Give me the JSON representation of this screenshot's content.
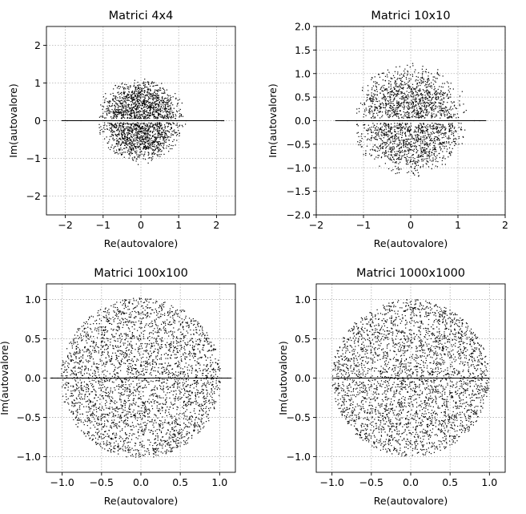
{
  "chart_data": [
    {
      "type": "scatter",
      "title": "Matrici 4x4",
      "xlabel": "Re(autovalore)",
      "ylabel": "Im(autovalore)",
      "xlim": [
        -2.5,
        2.5
      ],
      "ylim": [
        -2.5,
        2.5
      ],
      "xticks": [
        -2,
        -1,
        0,
        1,
        2
      ],
      "yticks": [
        -2,
        -1,
        0,
        1,
        2
      ],
      "xtick_labels": [
        "−2",
        "−1",
        "0",
        "1",
        "2"
      ],
      "ytick_labels": [
        "−2",
        "−1",
        "0",
        "1",
        "2"
      ],
      "grid": true,
      "point_color": "#000000",
      "distribution": {
        "shape": "disk with real-axis concentration",
        "approx_radius": 1.0,
        "real_axis_extent": [
          -2.1,
          2.2
        ]
      }
    },
    {
      "type": "scatter",
      "title": "Matrici 10x10",
      "xlabel": "Re(autovalore)",
      "ylabel": "Im(autovalore)",
      "xlim": [
        -2,
        2
      ],
      "ylim": [
        -2,
        2
      ],
      "xticks": [
        -2,
        -1,
        0,
        1,
        2
      ],
      "yticks": [
        -2.0,
        -1.5,
        -1.0,
        -0.5,
        0.0,
        0.5,
        1.0,
        1.5,
        2.0
      ],
      "xtick_labels": [
        "−2",
        "−1",
        "0",
        "1",
        "2"
      ],
      "ytick_labels": [
        "−2.0",
        "−1.5",
        "−1.0",
        "−0.5",
        "0.0",
        "0.5",
        "1.0",
        "1.5",
        "2.0"
      ],
      "grid": true,
      "point_color": "#000000",
      "distribution": {
        "shape": "disk with real-axis concentration",
        "approx_radius": 1.05,
        "real_axis_extent": [
          -1.6,
          1.6
        ]
      }
    },
    {
      "type": "scatter",
      "title": "Matrici 100x100",
      "xlabel": "Re(autovalore)",
      "ylabel": "Im(autovalore)",
      "xlim": [
        -1.2,
        1.2
      ],
      "ylim": [
        -1.2,
        1.2
      ],
      "xticks": [
        -1.0,
        -0.5,
        0.0,
        0.5,
        1.0
      ],
      "yticks": [
        -1.0,
        -0.5,
        0.0,
        0.5,
        1.0
      ],
      "xtick_labels": [
        "−1.0",
        "−0.5",
        "0.0",
        "0.5",
        "1.0"
      ],
      "ytick_labels": [
        "−1.0",
        "−0.5",
        "0.0",
        "0.5",
        "1.0"
      ],
      "grid": true,
      "point_color": "#000000",
      "distribution": {
        "shape": "uniform disk",
        "approx_radius": 1.02,
        "real_axis_extent": [
          -1.15,
          1.15
        ]
      }
    },
    {
      "type": "scatter",
      "title": "Matrici 1000x1000",
      "xlabel": "Re(autovalore)",
      "ylabel": "Im(autovalore)",
      "xlim": [
        -1.2,
        1.2
      ],
      "ylim": [
        -1.2,
        1.2
      ],
      "xticks": [
        -1.0,
        -0.5,
        0.0,
        0.5,
        1.0
      ],
      "yticks": [
        -1.0,
        -0.5,
        0.0,
        0.5,
        1.0
      ],
      "xtick_labels": [
        "−1.0",
        "−0.5",
        "0.0",
        "0.5",
        "1.0"
      ],
      "ytick_labels": [
        "−1.0",
        "−0.5",
        "0.0",
        "0.5",
        "1.0"
      ],
      "grid": true,
      "point_color": "#000000",
      "distribution": {
        "shape": "uniform disk",
        "approx_radius": 1.0,
        "real_axis_extent": [
          -1.0,
          1.0
        ]
      }
    }
  ]
}
